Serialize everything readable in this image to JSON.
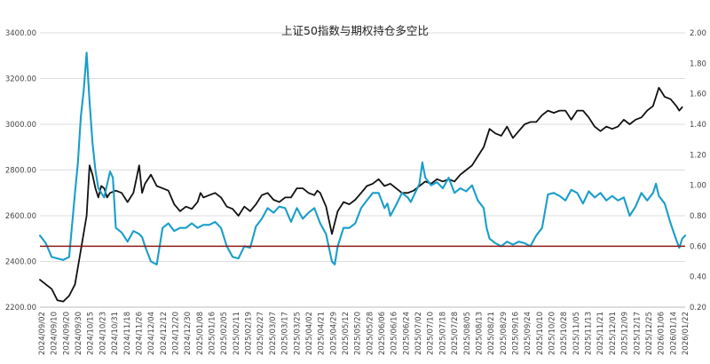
{
  "chart_data": {
    "type": "line",
    "title": "上证50指数与期权持仓多空比",
    "grid": "horizontal",
    "legend": "none",
    "y_left": {
      "min": 2200,
      "max": 3400,
      "ticks": [
        2200,
        2400,
        2600,
        2800,
        3000,
        3200,
        3400
      ],
      "format": "0.00"
    },
    "y_right": {
      "min": 0.2,
      "max": 2.0,
      "ticks": [
        0.2,
        0.4,
        0.6,
        0.8,
        1.0,
        1.2,
        1.4,
        1.6,
        1.8,
        2.0
      ],
      "format": "0.00"
    },
    "x_labels": [
      "2024/09/02",
      "2024/09/10",
      "2024/09/20",
      "2024/09/30",
      "2024/10/15",
      "2024/10/23",
      "2024/10/31",
      "2024/11/18",
      "2024/11/26",
      "2024/12/04",
      "2024/12/12",
      "2024/12/20",
      "2024/12/30",
      "2025/01/08",
      "2025/01/16",
      "2025/02/05",
      "2025/02/11",
      "2025/02/19",
      "2025/02/27",
      "2025/03/07",
      "2025/03/17",
      "2025/03/25",
      "2025/04/02",
      "2025/04/21",
      "2025/04/29",
      "2025/05/12",
      "2025/05/20",
      "2025/05/28",
      "2025/06/06",
      "2025/06/16",
      "2025/06/24",
      "2025/07/02",
      "2025/07/10",
      "2025/07/18",
      "2025/07/28",
      "2025/08/05",
      "2025/08/13",
      "2025/08/21",
      "2025/08/29",
      "2025/09/16",
      "2025/09/24",
      "2025/10/10",
      "2025/10/20",
      "2025/10/28",
      "2025/11/05",
      "2025/11/13",
      "2025/11/21",
      "2025/12/01",
      "2025/12/09",
      "2025/12/17",
      "2025/12/25",
      "2026/01/06",
      "2026/01/14",
      "2026/01/22"
    ],
    "reference_line": {
      "axis": "right",
      "value": 0.6,
      "color": "#8b1a1a"
    },
    "series": [
      {
        "axis": "left",
        "color": "#111111",
        "points": [
          [
            0,
            2320
          ],
          [
            2,
            2300
          ],
          [
            4,
            2280
          ],
          [
            6,
            2230
          ],
          [
            8,
            2225
          ],
          [
            10,
            2250
          ],
          [
            12,
            2300
          ],
          [
            14,
            2450
          ],
          [
            16,
            2600
          ],
          [
            17,
            2820
          ],
          [
            18,
            2780
          ],
          [
            19,
            2720
          ],
          [
            20,
            2680
          ],
          [
            21,
            2730
          ],
          [
            22,
            2720
          ],
          [
            23,
            2680
          ],
          [
            24,
            2700
          ],
          [
            26,
            2710
          ],
          [
            28,
            2700
          ],
          [
            30,
            2660
          ],
          [
            32,
            2700
          ],
          [
            33,
            2760
          ],
          [
            34,
            2820
          ],
          [
            35,
            2700
          ],
          [
            36,
            2740
          ],
          [
            38,
            2780
          ],
          [
            40,
            2730
          ],
          [
            42,
            2720
          ],
          [
            44,
            2710
          ],
          [
            46,
            2650
          ],
          [
            48,
            2620
          ],
          [
            50,
            2640
          ],
          [
            52,
            2630
          ],
          [
            54,
            2660
          ],
          [
            55,
            2700
          ],
          [
            56,
            2680
          ],
          [
            58,
            2690
          ],
          [
            60,
            2700
          ],
          [
            62,
            2680
          ],
          [
            64,
            2640
          ],
          [
            66,
            2630
          ],
          [
            68,
            2600
          ],
          [
            70,
            2640
          ],
          [
            72,
            2620
          ],
          [
            74,
            2650
          ],
          [
            76,
            2690
          ],
          [
            78,
            2700
          ],
          [
            80,
            2670
          ],
          [
            82,
            2660
          ],
          [
            84,
            2680
          ],
          [
            86,
            2680
          ],
          [
            88,
            2720
          ],
          [
            90,
            2720
          ],
          [
            92,
            2700
          ],
          [
            94,
            2690
          ],
          [
            95,
            2710
          ],
          [
            96,
            2700
          ],
          [
            98,
            2640
          ],
          [
            100,
            2520
          ],
          [
            102,
            2620
          ],
          [
            104,
            2660
          ],
          [
            106,
            2650
          ],
          [
            108,
            2670
          ],
          [
            110,
            2700
          ],
          [
            112,
            2730
          ],
          [
            114,
            2740
          ],
          [
            116,
            2760
          ],
          [
            118,
            2730
          ],
          [
            120,
            2740
          ],
          [
            122,
            2720
          ],
          [
            124,
            2700
          ],
          [
            126,
            2700
          ],
          [
            128,
            2710
          ],
          [
            130,
            2730
          ],
          [
            132,
            2750
          ],
          [
            134,
            2740
          ],
          [
            136,
            2760
          ],
          [
            138,
            2750
          ],
          [
            140,
            2760
          ],
          [
            142,
            2750
          ],
          [
            144,
            2780
          ],
          [
            146,
            2800
          ],
          [
            148,
            2820
          ],
          [
            150,
            2860
          ],
          [
            152,
            2900
          ],
          [
            154,
            2980
          ],
          [
            156,
            2960
          ],
          [
            158,
            2950
          ],
          [
            160,
            2990
          ],
          [
            162,
            2940
          ],
          [
            164,
            2970
          ],
          [
            166,
            3000
          ],
          [
            168,
            3010
          ],
          [
            170,
            3010
          ],
          [
            172,
            3040
          ],
          [
            174,
            3060
          ],
          [
            176,
            3050
          ],
          [
            178,
            3060
          ],
          [
            180,
            3060
          ],
          [
            182,
            3020
          ],
          [
            184,
            3060
          ],
          [
            186,
            3060
          ],
          [
            188,
            3030
          ],
          [
            190,
            2990
          ],
          [
            192,
            2970
          ],
          [
            194,
            2990
          ],
          [
            196,
            2980
          ],
          [
            198,
            2990
          ],
          [
            200,
            3020
          ],
          [
            202,
            3000
          ],
          [
            204,
            3020
          ],
          [
            206,
            3030
          ],
          [
            208,
            3060
          ],
          [
            210,
            3080
          ],
          [
            212,
            3160
          ],
          [
            213,
            3140
          ],
          [
            214,
            3120
          ],
          [
            216,
            3110
          ],
          [
            218,
            3080
          ],
          [
            219,
            3060
          ],
          [
            220,
            3075
          ]
        ]
      },
      {
        "axis": "right",
        "color": "#1a9ec9",
        "points": [
          [
            0,
            0.67
          ],
          [
            2,
            0.62
          ],
          [
            4,
            0.53
          ],
          [
            6,
            0.52
          ],
          [
            8,
            0.51
          ],
          [
            10,
            0.53
          ],
          [
            12,
            0.95
          ],
          [
            13,
            1.15
          ],
          [
            14,
            1.45
          ],
          [
            15,
            1.62
          ],
          [
            16,
            1.87
          ],
          [
            17,
            1.55
          ],
          [
            18,
            1.28
          ],
          [
            19,
            1.1
          ],
          [
            20,
            0.98
          ],
          [
            22,
            0.92
          ],
          [
            24,
            1.09
          ],
          [
            25,
            1.05
          ],
          [
            26,
            0.72
          ],
          [
            28,
            0.69
          ],
          [
            30,
            0.63
          ],
          [
            32,
            0.7
          ],
          [
            34,
            0.68
          ],
          [
            35,
            0.66
          ],
          [
            36,
            0.6
          ],
          [
            38,
            0.5
          ],
          [
            40,
            0.48
          ],
          [
            42,
            0.72
          ],
          [
            44,
            0.75
          ],
          [
            46,
            0.7
          ],
          [
            48,
            0.72
          ],
          [
            50,
            0.72
          ],
          [
            52,
            0.75
          ],
          [
            54,
            0.72
          ],
          [
            56,
            0.74
          ],
          [
            58,
            0.74
          ],
          [
            60,
            0.76
          ],
          [
            62,
            0.72
          ],
          [
            64,
            0.6
          ],
          [
            66,
            0.53
          ],
          [
            68,
            0.52
          ],
          [
            70,
            0.6
          ],
          [
            72,
            0.59
          ],
          [
            74,
            0.73
          ],
          [
            76,
            0.78
          ],
          [
            78,
            0.85
          ],
          [
            80,
            0.82
          ],
          [
            82,
            0.86
          ],
          [
            84,
            0.85
          ],
          [
            86,
            0.76
          ],
          [
            88,
            0.85
          ],
          [
            90,
            0.78
          ],
          [
            92,
            0.82
          ],
          [
            94,
            0.85
          ],
          [
            96,
            0.75
          ],
          [
            98,
            0.68
          ],
          [
            100,
            0.5
          ],
          [
            101,
            0.48
          ],
          [
            102,
            0.6
          ],
          [
            104,
            0.72
          ],
          [
            106,
            0.72
          ],
          [
            108,
            0.75
          ],
          [
            110,
            0.85
          ],
          [
            112,
            0.9
          ],
          [
            114,
            0.95
          ],
          [
            116,
            0.95
          ],
          [
            118,
            0.85
          ],
          [
            119,
            0.88
          ],
          [
            120,
            0.8
          ],
          [
            122,
            0.87
          ],
          [
            124,
            0.95
          ],
          [
            126,
            0.92
          ],
          [
            127,
            0.89
          ],
          [
            128,
            0.93
          ],
          [
            130,
            1.01
          ],
          [
            131,
            1.15
          ],
          [
            132,
            1.05
          ],
          [
            134,
            1.0
          ],
          [
            136,
            1.02
          ],
          [
            138,
            0.98
          ],
          [
            140,
            1.05
          ],
          [
            142,
            0.95
          ],
          [
            144,
            0.98
          ],
          [
            146,
            0.96
          ],
          [
            148,
            1.0
          ],
          [
            150,
            0.9
          ],
          [
            152,
            0.85
          ],
          [
            153,
            0.72
          ],
          [
            154,
            0.65
          ],
          [
            156,
            0.62
          ],
          [
            158,
            0.6
          ],
          [
            160,
            0.63
          ],
          [
            162,
            0.61
          ],
          [
            164,
            0.63
          ],
          [
            166,
            0.62
          ],
          [
            168,
            0.6
          ],
          [
            170,
            0.67
          ],
          [
            172,
            0.72
          ],
          [
            174,
            0.94
          ],
          [
            176,
            0.95
          ],
          [
            178,
            0.93
          ],
          [
            180,
            0.9
          ],
          [
            182,
            0.97
          ],
          [
            184,
            0.95
          ],
          [
            186,
            0.88
          ],
          [
            188,
            0.96
          ],
          [
            190,
            0.92
          ],
          [
            192,
            0.95
          ],
          [
            194,
            0.9
          ],
          [
            196,
            0.93
          ],
          [
            198,
            0.9
          ],
          [
            200,
            0.92
          ],
          [
            202,
            0.8
          ],
          [
            204,
            0.86
          ],
          [
            206,
            0.95
          ],
          [
            208,
            0.9
          ],
          [
            210,
            0.95
          ],
          [
            211,
            1.01
          ],
          [
            212,
            0.93
          ],
          [
            214,
            0.88
          ],
          [
            216,
            0.75
          ],
          [
            218,
            0.64
          ],
          [
            219,
            0.59
          ],
          [
            220,
            0.65
          ],
          [
            221,
            0.67
          ]
        ]
      }
    ]
  }
}
